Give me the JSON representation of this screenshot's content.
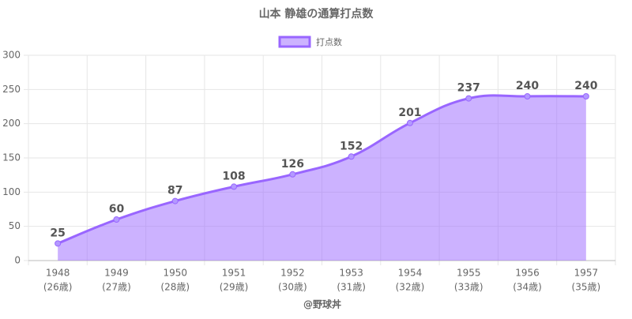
{
  "chart_data": {
    "type": "area",
    "title": "山本 静雄の通算打点数",
    "categories": [
      "1948",
      "1949",
      "1950",
      "1951",
      "1952",
      "1953",
      "1954",
      "1955",
      "1956",
      "1957"
    ],
    "category_sublabels": [
      "(26歳)",
      "(27歳)",
      "(28歳)",
      "(29歳)",
      "(30歳)",
      "(31歳)",
      "(32歳)",
      "(33歳)",
      "(34歳)",
      "(35歳)"
    ],
    "series": [
      {
        "name": "打点数",
        "color": "#9966ff",
        "values": [
          25,
          60,
          87,
          108,
          126,
          152,
          201,
          237,
          240,
          240
        ]
      }
    ],
    "ylim": [
      0,
      300
    ],
    "yticks": [
      0,
      50,
      100,
      150,
      200,
      250,
      300
    ],
    "grid": true,
    "footer": "@野球丼"
  }
}
